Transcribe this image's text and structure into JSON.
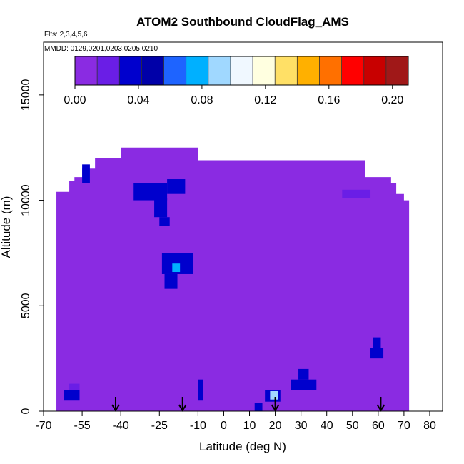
{
  "chart_data": {
    "type": "heatmap",
    "title": "ATOM2 Southbound CloudFlag_AMS",
    "flights_label": "Flts: 2,3,4,5,6",
    "dates_label": "MMDD: 0129,0201,0203,0205,0210",
    "xlabel": "Latitude (deg N)",
    "ylabel": "Altitude (m)",
    "xlim": [
      -70,
      85
    ],
    "ylim": [
      0,
      17500
    ],
    "x_ticks": [
      -70,
      -55,
      -40,
      -25,
      -10,
      0,
      10,
      20,
      30,
      40,
      50,
      60,
      70,
      80
    ],
    "x_tick_labels": [
      "-70",
      "-55",
      "-40",
      "-25",
      "-10",
      "0",
      "10",
      "20",
      "30",
      "40",
      "50",
      "60",
      "70",
      "80"
    ],
    "y_ticks": [
      0,
      5000,
      10000,
      15000
    ],
    "y_tick_labels": [
      "0",
      "5000",
      "10000",
      "15000"
    ],
    "colorbar": {
      "min": 0.0,
      "max": 0.21,
      "tick_values": [
        0.0,
        0.04,
        0.08,
        0.12,
        0.16,
        0.2
      ],
      "tick_labels": [
        "0.00",
        "0.04",
        "0.08",
        "0.12",
        "0.16",
        "0.20"
      ],
      "colors": [
        "#8a2be2",
        "#6a1ee6",
        "#0000cd",
        "#0000a8",
        "#1e64ff",
        "#00b0ff",
        "#a0d8ff",
        "#f0f8ff",
        "#ffffe0",
        "#ffe066",
        "#ffb000",
        "#ff7000",
        "#ff0000",
        "#c80000",
        "#a01818"
      ]
    },
    "background_value": 0.0,
    "coverage": {
      "x": [
        -65,
        -63,
        -60,
        -58,
        -55,
        -50,
        -45,
        -40,
        -35,
        -30,
        -25,
        -20,
        -15,
        -10,
        -5,
        0,
        10,
        20,
        30,
        35,
        40,
        45,
        50,
        55,
        60,
        62,
        65,
        67,
        70,
        72
      ],
      "top": [
        10400,
        10400,
        10900,
        11100,
        11500,
        12000,
        12000,
        12500,
        12500,
        12500,
        12500,
        12500,
        12500,
        11900,
        11900,
        11900,
        11900,
        11900,
        11900,
        11900,
        11900,
        11900,
        11900,
        11100,
        11100,
        11100,
        10800,
        10300,
        10000,
        10000
      ]
    },
    "cells": [
      {
        "lat": [
          -62,
          -56
        ],
        "alt": [
          500,
          1000
        ],
        "value": 0.03
      },
      {
        "lat": [
          -60,
          -56
        ],
        "alt": [
          1000,
          1300
        ],
        "value": 0.02
      },
      {
        "lat": [
          -55,
          -52
        ],
        "alt": [
          10800,
          11700
        ],
        "value": 0.03
      },
      {
        "lat": [
          -35,
          -22
        ],
        "alt": [
          10000,
          10800
        ],
        "value": 0.03
      },
      {
        "lat": [
          -27,
          -22
        ],
        "alt": [
          9200,
          10100
        ],
        "value": 0.035
      },
      {
        "lat": [
          -25,
          -21
        ],
        "alt": [
          8800,
          9200
        ],
        "value": 0.03
      },
      {
        "lat": [
          -22,
          -15
        ],
        "alt": [
          10300,
          11000
        ],
        "value": 0.04
      },
      {
        "lat": [
          -24,
          -12
        ],
        "alt": [
          6500,
          7500
        ],
        "value": 0.035
      },
      {
        "lat": [
          -23,
          -18
        ],
        "alt": [
          5800,
          6500
        ],
        "value": 0.03
      },
      {
        "lat": [
          -20,
          -17
        ],
        "alt": [
          6600,
          7000
        ],
        "value": 0.07
      },
      {
        "lat": [
          -10,
          -8
        ],
        "alt": [
          500,
          1500
        ],
        "value": 0.04
      },
      {
        "lat": [
          16,
          22
        ],
        "alt": [
          450,
          1000
        ],
        "value": 0.04
      },
      {
        "lat": [
          18,
          21
        ],
        "alt": [
          550,
          950
        ],
        "value": 0.09
      },
      {
        "lat": [
          12,
          15
        ],
        "alt": [
          0,
          400
        ],
        "value": 0.03
      },
      {
        "lat": [
          26,
          36
        ],
        "alt": [
          1000,
          1500
        ],
        "value": 0.03
      },
      {
        "lat": [
          29,
          33
        ],
        "alt": [
          1500,
          2000
        ],
        "value": 0.03
      },
      {
        "lat": [
          57,
          62
        ],
        "alt": [
          2500,
          3000
        ],
        "value": 0.03
      },
      {
        "lat": [
          58,
          61
        ],
        "alt": [
          3000,
          3500
        ],
        "value": 0.035
      },
      {
        "lat": [
          46,
          57
        ],
        "alt": [
          10100,
          10500
        ],
        "value": 0.025
      }
    ],
    "data_arrows_lat": [
      -42,
      -16,
      20,
      61
    ]
  }
}
